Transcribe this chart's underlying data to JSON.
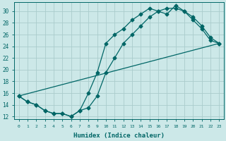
{
  "xlabel": "Humidex (Indice chaleur)",
  "bg_color": "#cce8e8",
  "grid_color": "#aacccc",
  "line_color": "#006666",
  "xlim": [
    -0.5,
    23.5
  ],
  "ylim": [
    11.5,
    31.5
  ],
  "xticks": [
    0,
    1,
    2,
    3,
    4,
    5,
    6,
    7,
    8,
    9,
    10,
    11,
    12,
    13,
    14,
    15,
    16,
    17,
    18,
    19,
    20,
    21,
    22,
    23
  ],
  "yticks": [
    12,
    14,
    16,
    18,
    20,
    22,
    24,
    26,
    28,
    30
  ],
  "line1_x": [
    0,
    1,
    2,
    3,
    4,
    5,
    6,
    7,
    8,
    9,
    10,
    11,
    12,
    13,
    14,
    15,
    16,
    17,
    18,
    19,
    20,
    21,
    22,
    23
  ],
  "line1_y": [
    15.5,
    14.5,
    14.0,
    13.0,
    12.5,
    12.5,
    12.0,
    13.0,
    16.0,
    19.5,
    24.5,
    26.0,
    27.0,
    28.5,
    29.5,
    30.5,
    30.0,
    29.5,
    31.0,
    30.0,
    28.5,
    27.0,
    25.0,
    24.5
  ],
  "line2_x": [
    0,
    1,
    2,
    3,
    4,
    5,
    6,
    7,
    8,
    9,
    10,
    11,
    12,
    13,
    14,
    15,
    16,
    17,
    18,
    19,
    20,
    21,
    22,
    23
  ],
  "line2_y": [
    15.5,
    14.5,
    14.0,
    13.0,
    12.5,
    12.5,
    12.0,
    13.0,
    13.5,
    15.5,
    19.5,
    22.0,
    24.5,
    26.0,
    27.5,
    29.0,
    30.0,
    30.5,
    30.5,
    30.0,
    29.0,
    27.5,
    25.5,
    24.5
  ],
  "line3_x": [
    0,
    23
  ],
  "line3_y": [
    15.5,
    24.5
  ]
}
